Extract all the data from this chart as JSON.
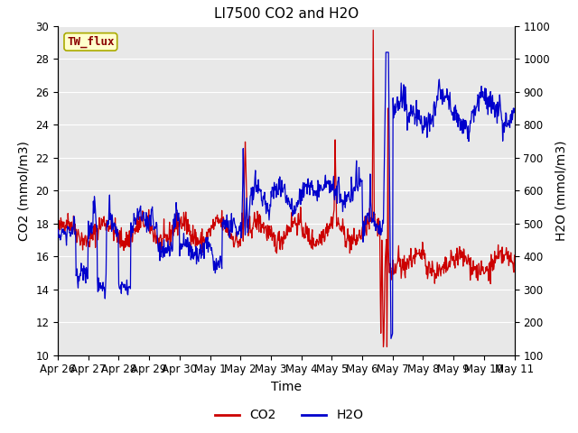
{
  "title": "LI7500 CO2 and H2O",
  "xlabel": "Time",
  "ylabel_left": "CO2 (mmol/m3)",
  "ylabel_right": "H2O (mmol/m3)",
  "ylim_left": [
    10,
    30
  ],
  "ylim_right": [
    100,
    1100
  ],
  "yticks_left": [
    10,
    12,
    14,
    16,
    18,
    20,
    22,
    24,
    26,
    28,
    30
  ],
  "yticks_right": [
    100,
    200,
    300,
    400,
    500,
    600,
    700,
    800,
    900,
    1000,
    1100
  ],
  "xtick_labels": [
    "Apr 26",
    "Apr 27",
    "Apr 28",
    "Apr 29",
    "Apr 30",
    "May 1",
    "May 2",
    "May 3",
    "May 4",
    "May 5",
    "May 6",
    "May 7",
    "May 8",
    "May 9",
    "May 10",
    "May 11"
  ],
  "co2_color": "#cc0000",
  "h2o_color": "#0000cc",
  "bg_color": "#e8e8e8",
  "grid_color": "#ffffff",
  "annotation_text": "TW_flux",
  "annotation_bg": "#ffffcc",
  "annotation_border": "#aaaa00",
  "legend_co2": "CO2",
  "legend_h2o": "H2O",
  "title_fontsize": 11,
  "axis_label_fontsize": 10,
  "tick_fontsize": 8.5,
  "legend_fontsize": 10,
  "n_points": 900
}
